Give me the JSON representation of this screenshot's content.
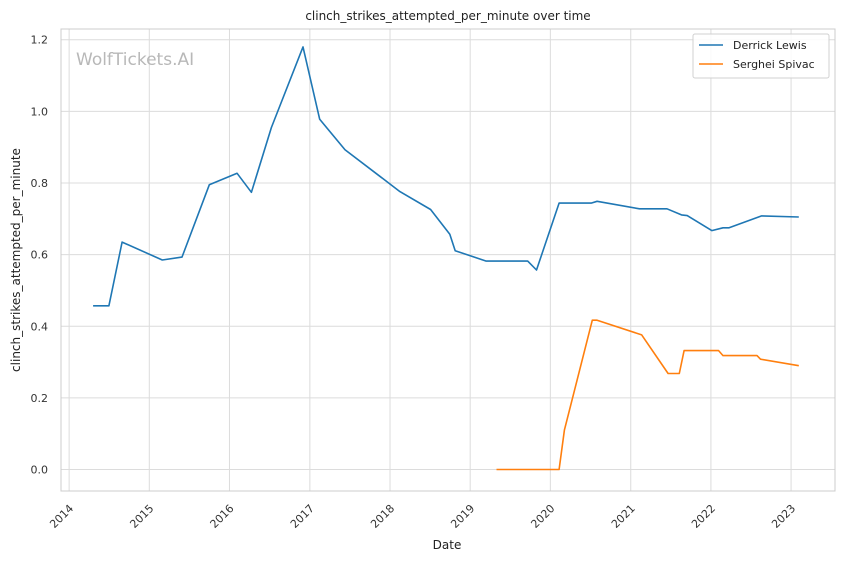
{
  "chart_data": {
    "type": "line",
    "title": "clinch_strikes_attempted_per_minute over time",
    "xlabel": "Date",
    "ylabel": "clinch_strikes_attempted_per_minute",
    "xlim": [
      "2013-11-25",
      "2023-07-20"
    ],
    "ylim": [
      -0.06,
      1.23
    ],
    "x_ticks": [
      "2014",
      "2015",
      "2016",
      "2017",
      "2018",
      "2019",
      "2020",
      "2021",
      "2022",
      "2023"
    ],
    "y_ticks": [
      0.0,
      0.2,
      0.4,
      0.6,
      0.8,
      1.0,
      1.2
    ],
    "y_tick_labels": [
      "0.0",
      "0.2",
      "0.4",
      "0.6",
      "0.8",
      "1.0",
      "1.2"
    ],
    "grid": true,
    "legend_position": "top-right",
    "watermark": "WolfTickets.AI",
    "series": [
      {
        "name": "Derrick Lewis",
        "color": "#1f77b4",
        "points": [
          [
            "2014-04-20",
            0.457
          ],
          [
            "2014-07-01",
            0.457
          ],
          [
            "2014-08-30",
            0.635
          ],
          [
            "2015-03-01",
            0.585
          ],
          [
            "2015-05-30",
            0.593
          ],
          [
            "2015-10-01",
            0.795
          ],
          [
            "2016-02-05",
            0.827
          ],
          [
            "2016-04-10",
            0.774
          ],
          [
            "2016-07-10",
            0.955
          ],
          [
            "2016-12-01",
            1.18
          ],
          [
            "2017-02-15",
            0.978
          ],
          [
            "2017-06-10",
            0.893
          ],
          [
            "2018-02-15",
            0.776
          ],
          [
            "2018-07-05",
            0.726
          ],
          [
            "2018-09-30",
            0.657
          ],
          [
            "2018-10-25",
            0.611
          ],
          [
            "2019-03-15",
            0.582
          ],
          [
            "2019-09-20",
            0.582
          ],
          [
            "2019-10-30",
            0.557
          ],
          [
            "2020-02-10",
            0.744
          ],
          [
            "2020-07-05",
            0.744
          ],
          [
            "2020-08-01",
            0.749
          ],
          [
            "2021-02-10",
            0.728
          ],
          [
            "2021-06-15",
            0.728
          ],
          [
            "2021-08-20",
            0.711
          ],
          [
            "2021-09-15",
            0.709
          ],
          [
            "2022-01-05",
            0.667
          ],
          [
            "2022-02-25",
            0.675
          ],
          [
            "2022-03-25",
            0.675
          ],
          [
            "2022-08-20",
            0.708
          ],
          [
            "2023-02-05",
            0.705
          ]
        ]
      },
      {
        "name": "Serghei Spivac",
        "color": "#ff7f0e",
        "points": [
          [
            "2019-05-01",
            0.0
          ],
          [
            "2020-02-10",
            0.0
          ],
          [
            "2020-03-05",
            0.11
          ],
          [
            "2020-07-10",
            0.417
          ],
          [
            "2020-08-01",
            0.417
          ],
          [
            "2021-02-20",
            0.376
          ],
          [
            "2021-06-20",
            0.268
          ],
          [
            "2021-08-10",
            0.268
          ],
          [
            "2021-09-01",
            0.332
          ],
          [
            "2022-02-05",
            0.332
          ],
          [
            "2022-02-25",
            0.318
          ],
          [
            "2022-07-30",
            0.318
          ],
          [
            "2022-08-15",
            0.308
          ],
          [
            "2023-02-05",
            0.29
          ]
        ]
      }
    ]
  }
}
